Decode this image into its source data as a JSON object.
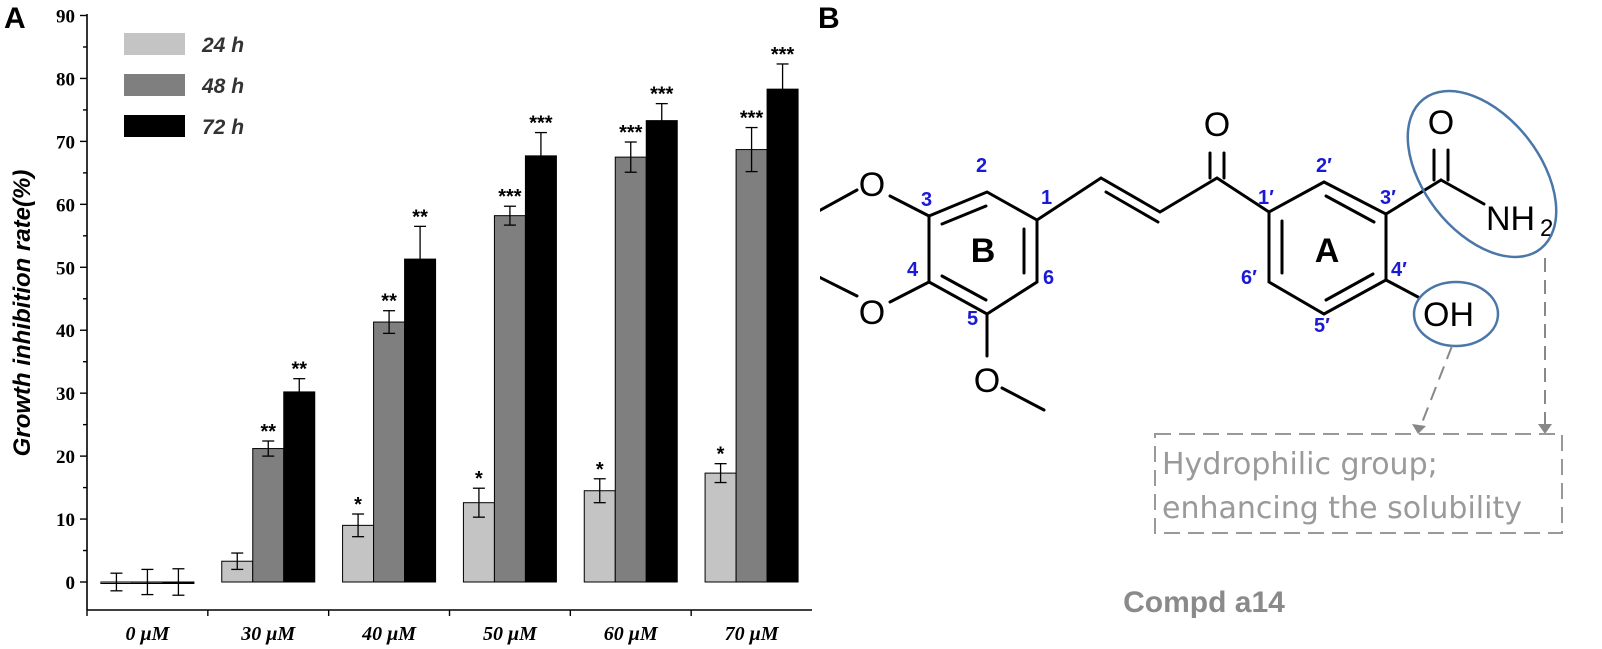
{
  "panel_a_label": "A",
  "panel_b_label": "B",
  "chart_data": {
    "type": "bar",
    "ylabel": "Growth inhibition rate(%)",
    "xlabel": "",
    "ylim": [
      0,
      90
    ],
    "yticks": [
      0,
      10,
      20,
      30,
      40,
      50,
      60,
      70,
      80,
      90
    ],
    "categories": [
      "0 μM",
      "30 μM",
      "40 μM",
      "50 μM",
      "60 μM",
      "70 μM"
    ],
    "legend_position": "top-left",
    "series": [
      {
        "name": "24 h",
        "color": "#c4c4c4",
        "values": [
          0,
          3.3,
          9.0,
          12.6,
          14.5,
          17.3
        ],
        "errors": [
          1.4,
          1.3,
          1.8,
          2.3,
          1.9,
          1.5
        ],
        "significance": [
          "",
          "",
          "*",
          "*",
          "*",
          "*"
        ]
      },
      {
        "name": "48 h",
        "color": "#7f7f7f",
        "values": [
          0,
          21.2,
          41.3,
          58.2,
          67.5,
          68.7
        ],
        "errors": [
          2.0,
          1.2,
          1.8,
          1.5,
          2.4,
          3.5
        ],
        "significance": [
          "",
          "**",
          "**",
          "***",
          "***",
          "***"
        ]
      },
      {
        "name": "72 h",
        "color": "#000000",
        "values": [
          0,
          30.2,
          51.3,
          67.7,
          73.3,
          78.3
        ],
        "errors": [
          2.1,
          2.1,
          5.2,
          3.7,
          2.7,
          4.0
        ],
        "significance": [
          "",
          "**",
          "**",
          "***",
          "***",
          "***"
        ]
      }
    ]
  },
  "structure": {
    "atoms": {
      "carbonyl_o": "O",
      "amide_o": "O",
      "amide_n": "NH",
      "amide_sub": "2",
      "hydroxyl": "OH",
      "methoxy_o1": "O",
      "methoxy_o2": "O",
      "methoxy_o3": "O"
    },
    "ring_a": "A",
    "ring_b": "B",
    "numbers_b": [
      "1",
      "2",
      "3",
      "4",
      "5",
      "6"
    ],
    "numbers_a": [
      "1′",
      "2′",
      "3′",
      "4′",
      "5′",
      "6′"
    ],
    "note_line1": "Hydrophilic group;",
    "note_line2": "enhancing the solubility",
    "compound_name": "Compd a14",
    "colors": {
      "numbers": "#1a1ad6",
      "highlight": "#4a77a8",
      "note": "#9a9a9a"
    }
  }
}
